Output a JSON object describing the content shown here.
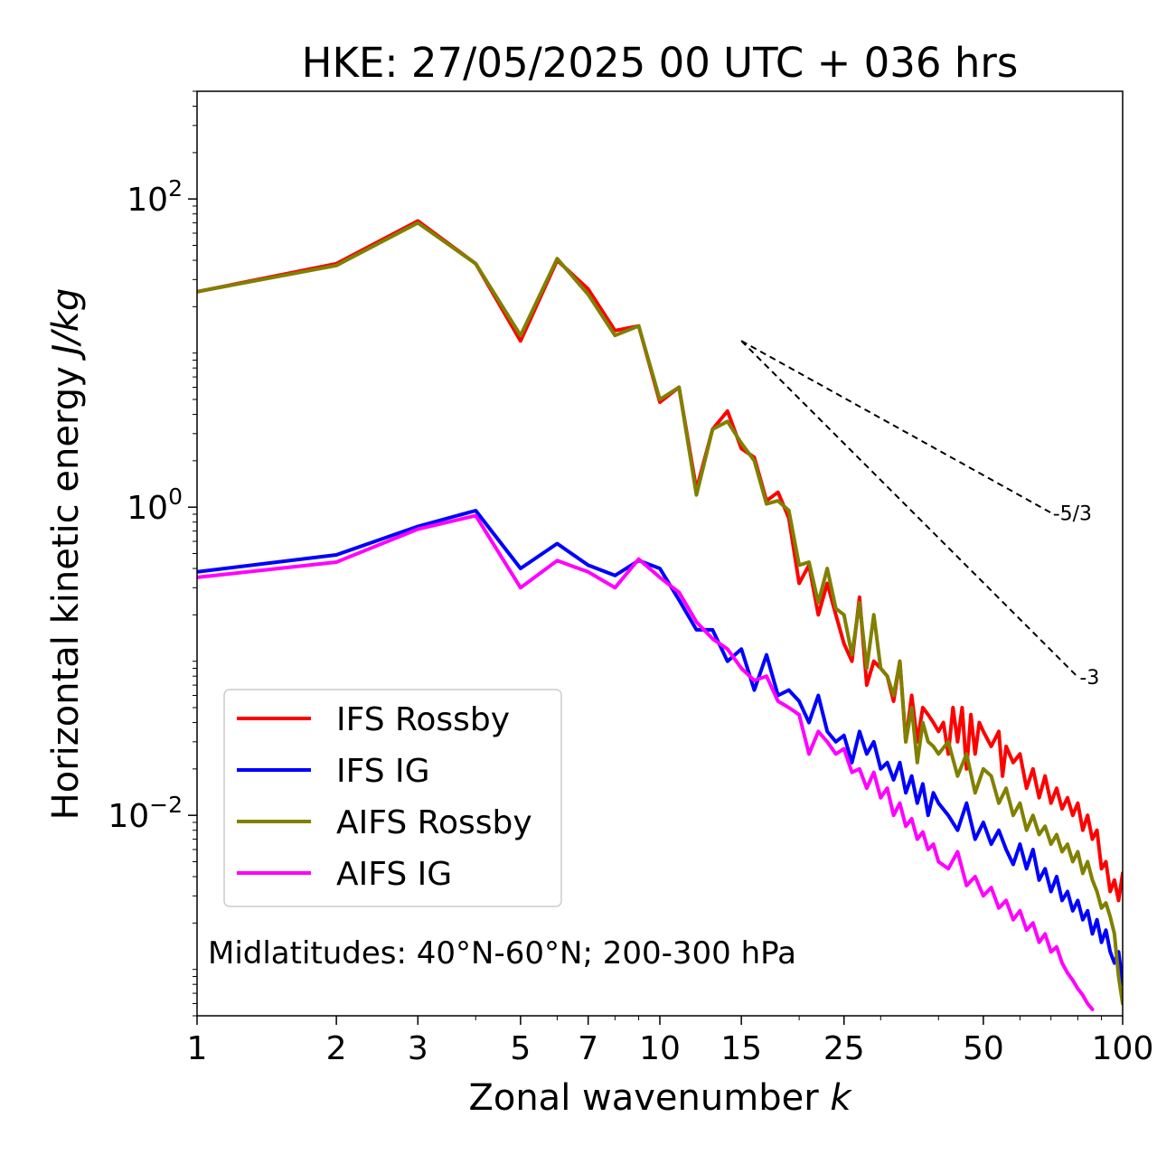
{
  "chart_data": {
    "type": "line",
    "title": "HKE: 27/05/2025 00 UTC + 036 hrs",
    "xlabel": "Zonal wavenumber",
    "xlabel_var": "k",
    "ylabel": "Horizontal kinetic energy",
    "ylabel_unit": "J/kg",
    "xscale": "log",
    "yscale": "log",
    "xlim": [
      1,
      100
    ],
    "ylim": [
      0.0005,
      500
    ],
    "x_ticks": [
      1,
      2,
      3,
      5,
      7,
      10,
      15,
      25,
      50,
      100
    ],
    "x_tick_labels": [
      "1",
      "2",
      "3",
      "5",
      "7",
      "10",
      "15",
      "25",
      "50",
      "100"
    ],
    "y_ticks": [
      0.01,
      1,
      100
    ],
    "y_tick_labels": [
      {
        "base": "10",
        "exp": "−2"
      },
      {
        "base": "10",
        "exp": "0"
      },
      {
        "base": "10",
        "exp": "2"
      }
    ],
    "grid": false,
    "legend_placement": "lower-left",
    "annotation": "Midlatitudes: 40°N-60°N; 200-300 hPa",
    "reference_slopes": [
      {
        "label": "-5/3",
        "x": [
          15,
          70
        ],
        "y": [
          12,
          0.92
        ]
      },
      {
        "label": "-3",
        "x": [
          15,
          80
        ],
        "y": [
          12,
          0.079
        ]
      }
    ],
    "series": [
      {
        "name": "IFS Rossby",
        "color": "#ff0000",
        "points": [
          [
            1,
            25
          ],
          [
            2,
            38
          ],
          [
            3,
            72
          ],
          [
            4,
            38
          ],
          [
            5,
            12
          ],
          [
            6,
            40
          ],
          [
            7,
            26
          ],
          [
            8,
            14
          ],
          [
            9,
            15
          ],
          [
            10,
            4.8
          ],
          [
            11,
            6
          ],
          [
            12,
            1.3
          ],
          [
            13,
            3.2
          ],
          [
            14,
            4.2
          ],
          [
            15,
            2.4
          ],
          [
            16,
            2.1
          ],
          [
            17,
            1.1
          ],
          [
            18,
            1.25
          ],
          [
            19,
            0.85
          ],
          [
            20,
            0.32
          ],
          [
            21,
            0.42
          ],
          [
            22,
            0.2
          ],
          [
            23,
            0.32
          ],
          [
            24,
            0.2
          ],
          [
            25,
            0.13
          ],
          [
            26,
            0.1
          ],
          [
            27,
            0.26
          ],
          [
            28,
            0.07
          ],
          [
            29,
            0.1
          ],
          [
            30,
            0.09
          ],
          [
            31,
            0.08
          ],
          [
            32,
            0.055
          ],
          [
            33,
            0.1
          ],
          [
            34,
            0.03
          ],
          [
            35,
            0.06
          ],
          [
            36,
            0.03
          ],
          [
            37,
            0.05
          ],
          [
            38,
            0.045
          ],
          [
            39,
            0.04
          ],
          [
            40,
            0.035
          ],
          [
            41,
            0.04
          ],
          [
            42,
            0.025
          ],
          [
            43,
            0.05
          ],
          [
            44,
            0.03
          ],
          [
            45,
            0.05
          ],
          [
            46,
            0.02
          ],
          [
            47,
            0.045
          ],
          [
            48,
            0.025
          ],
          [
            49,
            0.04
          ],
          [
            50,
            0.035
          ],
          [
            52,
            0.028
          ],
          [
            54,
            0.035
          ],
          [
            55,
            0.018
          ],
          [
            56,
            0.028
          ],
          [
            58,
            0.022
          ],
          [
            60,
            0.025
          ],
          [
            62,
            0.015
          ],
          [
            64,
            0.02
          ],
          [
            66,
            0.013
          ],
          [
            68,
            0.018
          ],
          [
            70,
            0.012
          ],
          [
            72,
            0.015
          ],
          [
            74,
            0.011
          ],
          [
            76,
            0.013
          ],
          [
            78,
            0.01
          ],
          [
            80,
            0.012
          ],
          [
            82,
            0.008
          ],
          [
            84,
            0.01
          ],
          [
            86,
            0.007
          ],
          [
            88,
            0.008
          ],
          [
            90,
            0.0045
          ],
          [
            92,
            0.005
          ],
          [
            94,
            0.0032
          ],
          [
            96,
            0.0038
          ],
          [
            98,
            0.0028
          ],
          [
            100,
            0.0042
          ]
        ]
      },
      {
        "name": "IFS IG",
        "color": "#0000ff",
        "points": [
          [
            1,
            0.38
          ],
          [
            2,
            0.49
          ],
          [
            3,
            0.75
          ],
          [
            4,
            0.95
          ],
          [
            5,
            0.4
          ],
          [
            6,
            0.58
          ],
          [
            7,
            0.42
          ],
          [
            8,
            0.36
          ],
          [
            9,
            0.45
          ],
          [
            10,
            0.4
          ],
          [
            11,
            0.25
          ],
          [
            12,
            0.16
          ],
          [
            13,
            0.16
          ],
          [
            14,
            0.1
          ],
          [
            15,
            0.12
          ],
          [
            16,
            0.065
          ],
          [
            17,
            0.11
          ],
          [
            18,
            0.06
          ],
          [
            19,
            0.065
          ],
          [
            20,
            0.055
          ],
          [
            21,
            0.04
          ],
          [
            22,
            0.06
          ],
          [
            23,
            0.035
          ],
          [
            24,
            0.03
          ],
          [
            25,
            0.033
          ],
          [
            26,
            0.022
          ],
          [
            27,
            0.035
          ],
          [
            28,
            0.025
          ],
          [
            29,
            0.03
          ],
          [
            30,
            0.02
          ],
          [
            31,
            0.022
          ],
          [
            32,
            0.017
          ],
          [
            33,
            0.022
          ],
          [
            34,
            0.014
          ],
          [
            35,
            0.018
          ],
          [
            36,
            0.012
          ],
          [
            37,
            0.016
          ],
          [
            38,
            0.01
          ],
          [
            39,
            0.014
          ],
          [
            40,
            0.012
          ],
          [
            42,
            0.01
          ],
          [
            44,
            0.008
          ],
          [
            46,
            0.012
          ],
          [
            48,
            0.007
          ],
          [
            50,
            0.009
          ],
          [
            52,
            0.0065
          ],
          [
            54,
            0.008
          ],
          [
            56,
            0.006
          ],
          [
            58,
            0.0048
          ],
          [
            60,
            0.0065
          ],
          [
            62,
            0.0045
          ],
          [
            64,
            0.006
          ],
          [
            66,
            0.0038
          ],
          [
            68,
            0.0045
          ],
          [
            70,
            0.0032
          ],
          [
            72,
            0.004
          ],
          [
            74,
            0.0028
          ],
          [
            76,
            0.0032
          ],
          [
            78,
            0.0024
          ],
          [
            80,
            0.0028
          ],
          [
            82,
            0.0021
          ],
          [
            84,
            0.0024
          ],
          [
            86,
            0.0017
          ],
          [
            88,
            0.0021
          ],
          [
            90,
            0.0015
          ],
          [
            92,
            0.0018
          ],
          [
            94,
            0.0013
          ],
          [
            96,
            0.0011
          ],
          [
            98,
            0.0013
          ],
          [
            100,
            0.0008
          ]
        ]
      },
      {
        "name": "AIFS Rossby",
        "color": "#808000",
        "points": [
          [
            1,
            25
          ],
          [
            2,
            37
          ],
          [
            3,
            70
          ],
          [
            4,
            38
          ],
          [
            5,
            13
          ],
          [
            6,
            41
          ],
          [
            7,
            24
          ],
          [
            8,
            13
          ],
          [
            9,
            15
          ],
          [
            10,
            5
          ],
          [
            11,
            6
          ],
          [
            12,
            1.2
          ],
          [
            13,
            3.2
          ],
          [
            14,
            3.6
          ],
          [
            15,
            2.6
          ],
          [
            16,
            2
          ],
          [
            17,
            1.05
          ],
          [
            18,
            1.1
          ],
          [
            19,
            0.95
          ],
          [
            20,
            0.42
          ],
          [
            21,
            0.44
          ],
          [
            22,
            0.24
          ],
          [
            23,
            0.4
          ],
          [
            24,
            0.22
          ],
          [
            25,
            0.2
          ],
          [
            26,
            0.11
          ],
          [
            27,
            0.24
          ],
          [
            28,
            0.09
          ],
          [
            29,
            0.2
          ],
          [
            30,
            0.09
          ],
          [
            31,
            0.08
          ],
          [
            32,
            0.06
          ],
          [
            33,
            0.1
          ],
          [
            34,
            0.03
          ],
          [
            35,
            0.05
          ],
          [
            36,
            0.022
          ],
          [
            37,
            0.04
          ],
          [
            38,
            0.03
          ],
          [
            39,
            0.028
          ],
          [
            40,
            0.025
          ],
          [
            42,
            0.03
          ],
          [
            44,
            0.018
          ],
          [
            46,
            0.025
          ],
          [
            48,
            0.014
          ],
          [
            50,
            0.02
          ],
          [
            52,
            0.018
          ],
          [
            54,
            0.012
          ],
          [
            56,
            0.015
          ],
          [
            58,
            0.01
          ],
          [
            60,
            0.012
          ],
          [
            62,
            0.008
          ],
          [
            64,
            0.01
          ],
          [
            66,
            0.0075
          ],
          [
            68,
            0.0085
          ],
          [
            70,
            0.0065
          ],
          [
            72,
            0.0075
          ],
          [
            74,
            0.0058
          ],
          [
            76,
            0.0065
          ],
          [
            78,
            0.005
          ],
          [
            80,
            0.0058
          ],
          [
            82,
            0.0042
          ],
          [
            84,
            0.005
          ],
          [
            86,
            0.0038
          ],
          [
            88,
            0.0032
          ],
          [
            90,
            0.0025
          ],
          [
            92,
            0.0027
          ],
          [
            94,
            0.0022
          ],
          [
            96,
            0.0017
          ],
          [
            98,
            0.0009
          ],
          [
            100,
            0.0006
          ]
        ]
      },
      {
        "name": "AIFS IG",
        "color": "#ff00ff",
        "points": [
          [
            1,
            0.35
          ],
          [
            2,
            0.44
          ],
          [
            3,
            0.72
          ],
          [
            4,
            0.88
          ],
          [
            5,
            0.3
          ],
          [
            6,
            0.45
          ],
          [
            7,
            0.38
          ],
          [
            8,
            0.3
          ],
          [
            9,
            0.46
          ],
          [
            10,
            0.35
          ],
          [
            11,
            0.28
          ],
          [
            12,
            0.18
          ],
          [
            13,
            0.14
          ],
          [
            14,
            0.12
          ],
          [
            15,
            0.09
          ],
          [
            16,
            0.075
          ],
          [
            17,
            0.08
          ],
          [
            18,
            0.055
          ],
          [
            19,
            0.05
          ],
          [
            20,
            0.045
          ],
          [
            21,
            0.025
          ],
          [
            22,
            0.035
          ],
          [
            23,
            0.03
          ],
          [
            24,
            0.025
          ],
          [
            25,
            0.027
          ],
          [
            26,
            0.019
          ],
          [
            27,
            0.02
          ],
          [
            28,
            0.015
          ],
          [
            29,
            0.019
          ],
          [
            30,
            0.013
          ],
          [
            31,
            0.015
          ],
          [
            32,
            0.01
          ],
          [
            33,
            0.012
          ],
          [
            34,
            0.0085
          ],
          [
            35,
            0.0095
          ],
          [
            36,
            0.007
          ],
          [
            37,
            0.0078
          ],
          [
            38,
            0.006
          ],
          [
            39,
            0.0065
          ],
          [
            40,
            0.005
          ],
          [
            42,
            0.0045
          ],
          [
            44,
            0.0058
          ],
          [
            46,
            0.0035
          ],
          [
            48,
            0.004
          ],
          [
            50,
            0.003
          ],
          [
            52,
            0.0034
          ],
          [
            54,
            0.0025
          ],
          [
            56,
            0.0028
          ],
          [
            58,
            0.0021
          ],
          [
            60,
            0.0024
          ],
          [
            62,
            0.0018
          ],
          [
            64,
            0.002
          ],
          [
            66,
            0.0015
          ],
          [
            68,
            0.0017
          ],
          [
            70,
            0.0013
          ],
          [
            72,
            0.0014
          ],
          [
            74,
            0.0011
          ],
          [
            76,
            0.00095
          ],
          [
            78,
            0.00085
          ],
          [
            80,
            0.00075
          ],
          [
            82,
            0.00068
          ],
          [
            84,
            0.0006
          ],
          [
            86,
            0.00055
          ]
        ]
      }
    ]
  }
}
